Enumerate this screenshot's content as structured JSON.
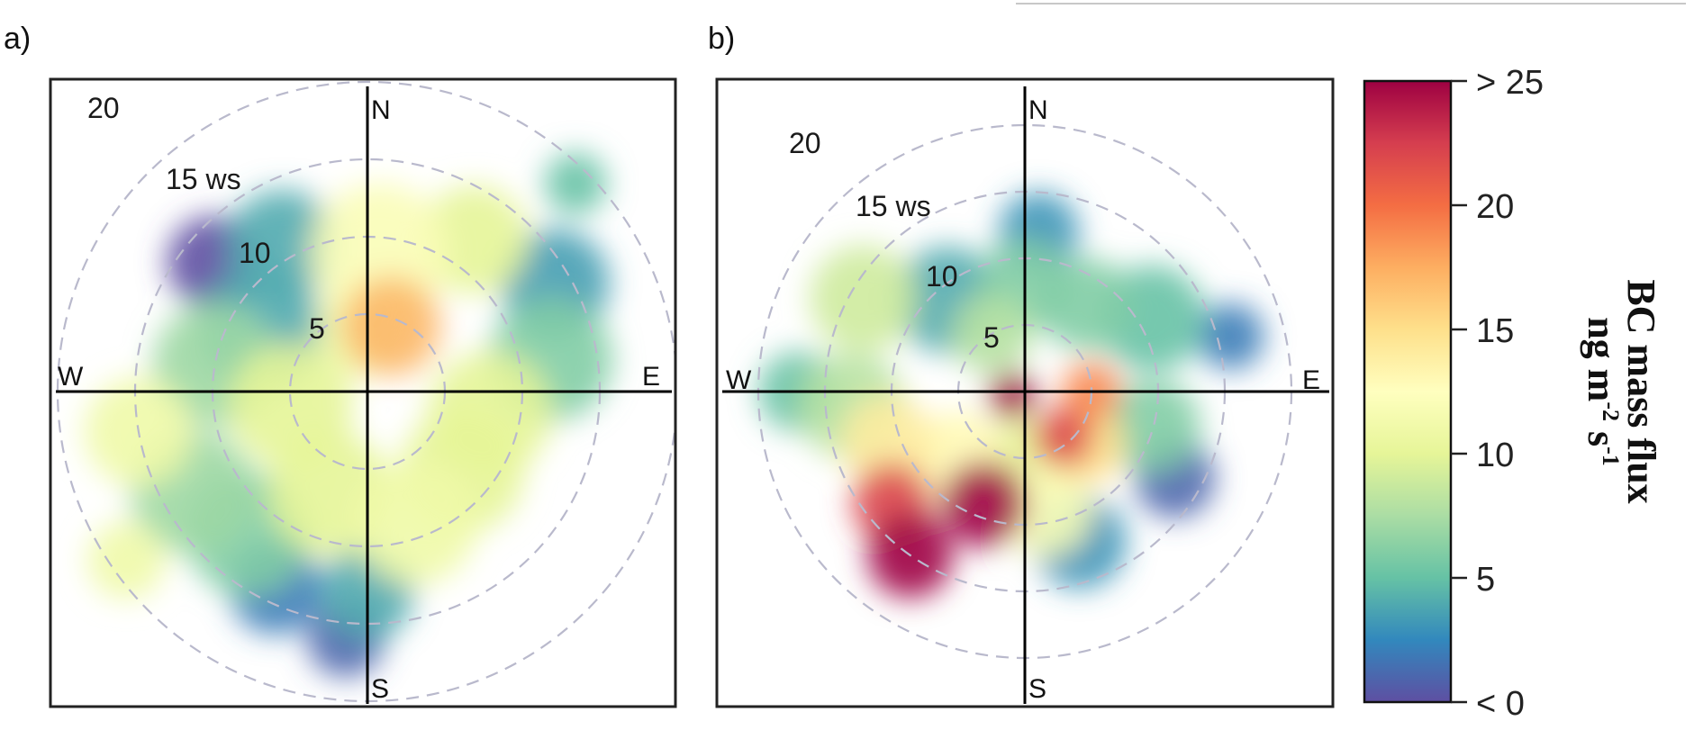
{
  "chart_data": [
    {
      "type": "heatmap",
      "panel": "a)",
      "projection": "polar",
      "radial_label_suffix": "ws",
      "radial_ticks": [
        5,
        10,
        15,
        20
      ],
      "directions": [
        "N",
        "E",
        "S",
        "W"
      ],
      "color_variable": "BC mass flux",
      "blobs": [
        {
          "dir": 20,
          "ws": 4.5,
          "value": 17,
          "spread": 3.2
        },
        {
          "dir": 5,
          "ws": 9,
          "value": 12,
          "spread": 4.5
        },
        {
          "dir": 35,
          "ws": 12,
          "value": 10,
          "spread": 3.5
        },
        {
          "dir": 60,
          "ws": 14,
          "value": 3.5,
          "spread": 3.5
        },
        {
          "dir": 80,
          "ws": 12,
          "value": 6,
          "spread": 4
        },
        {
          "dir": 45,
          "ws": 19,
          "value": 5,
          "spread": 2
        },
        {
          "dir": 100,
          "ws": 8,
          "value": 10,
          "spread": 4
        },
        {
          "dir": 130,
          "ws": 8,
          "value": 10,
          "spread": 4
        },
        {
          "dir": 160,
          "ws": 9,
          "value": 11,
          "spread": 4
        },
        {
          "dir": 180,
          "ws": 13,
          "value": 4,
          "spread": 3
        },
        {
          "dir": 185,
          "ws": 16,
          "value": 1,
          "spread": 2.5
        },
        {
          "dir": 205,
          "ws": 14,
          "value": 2,
          "spread": 3
        },
        {
          "dir": 220,
          "ws": 12,
          "value": 6,
          "spread": 4
        },
        {
          "dir": 240,
          "ws": 13,
          "value": 7,
          "spread": 4
        },
        {
          "dir": 235,
          "ws": 19,
          "value": 11,
          "spread": 2.5
        },
        {
          "dir": 260,
          "ws": 15,
          "value": 11,
          "spread": 3.5
        },
        {
          "dir": 280,
          "ws": 10,
          "value": 7,
          "spread": 4
        },
        {
          "dir": 300,
          "ws": 8,
          "value": 4,
          "spread": 4
        },
        {
          "dir": 310,
          "ws": 13,
          "value": 0,
          "spread": 3
        },
        {
          "dir": 330,
          "ws": 11,
          "value": 4,
          "spread": 3.5
        },
        {
          "dir": 200,
          "ws": 7,
          "value": 10,
          "spread": 4
        },
        {
          "dir": 260,
          "ws": 5,
          "value": 10,
          "spread": 4
        },
        {
          "dir": 355,
          "ws": 4,
          "value": 11,
          "spread": 3
        }
      ]
    },
    {
      "type": "heatmap",
      "panel": "b)",
      "projection": "polar",
      "radial_label_suffix": "ws",
      "radial_ticks": [
        5,
        10,
        15,
        20
      ],
      "directions": [
        "N",
        "E",
        "S",
        "W"
      ],
      "color_variable": "BC mass flux",
      "blobs": [
        {
          "dir": 250,
          "ws": 1,
          "value": 30,
          "spread": 1.8
        },
        {
          "dir": 90,
          "ws": 5,
          "value": 19,
          "spread": 2.2
        },
        {
          "dir": 140,
          "ws": 4.5,
          "value": 22,
          "spread": 2.2
        },
        {
          "dir": 130,
          "ws": 6,
          "value": 15,
          "spread": 3
        },
        {
          "dir": 200,
          "ws": 9,
          "value": 30,
          "spread": 3.2
        },
        {
          "dir": 215,
          "ws": 15,
          "value": 30,
          "spread": 3.2
        },
        {
          "dir": 230,
          "ws": 13,
          "value": 22,
          "spread": 3
        },
        {
          "dir": 250,
          "ws": 11,
          "value": 14,
          "spread": 3.5
        },
        {
          "dir": 225,
          "ws": 7,
          "value": 13,
          "spread": 3.5
        },
        {
          "dir": 170,
          "ws": 9,
          "value": 12,
          "spread": 3.5
        },
        {
          "dir": 265,
          "ws": 13,
          "value": 8,
          "spread": 4
        },
        {
          "dir": 270,
          "ws": 17,
          "value": 5,
          "spread": 3
        },
        {
          "dir": 300,
          "ws": 14,
          "value": 9,
          "spread": 4
        },
        {
          "dir": 320,
          "ws": 9,
          "value": 4,
          "spread": 4
        },
        {
          "dir": 330,
          "ws": 5,
          "value": 8,
          "spread": 3
        },
        {
          "dir": 0,
          "ws": 8,
          "value": 6,
          "spread": 3.5
        },
        {
          "dir": 5,
          "ws": 12,
          "value": 3,
          "spread": 3
        },
        {
          "dir": 35,
          "ws": 8,
          "value": 6,
          "spread": 3.5
        },
        {
          "dir": 60,
          "ws": 11,
          "value": 5,
          "spread": 4
        },
        {
          "dir": 75,
          "ws": 16,
          "value": 2,
          "spread": 2.5
        },
        {
          "dir": 105,
          "ws": 10,
          "value": 6,
          "spread": 3.5
        },
        {
          "dir": 120,
          "ws": 13,
          "value": 1,
          "spread": 3
        },
        {
          "dir": 160,
          "ws": 12,
          "value": 3,
          "spread": 3.5
        },
        {
          "dir": 180,
          "ws": 5,
          "value": 10,
          "spread": 3
        }
      ]
    }
  ],
  "colorbar": {
    "ticks": [
      "< 0",
      "5",
      "10",
      "15",
      "20",
      "> 25"
    ],
    "tick_values": [
      0,
      5,
      10,
      15,
      20,
      25
    ],
    "range": [
      0,
      25
    ],
    "title_line1": "BC mass flux",
    "title_line2_base": "ng m",
    "title_line2_exp1": "-2",
    "title_line2_mid": " s",
    "title_line2_exp2": "-1",
    "colors": [
      "#5e4fa2",
      "#3288bd",
      "#66c2a5",
      "#abdda4",
      "#e6f598",
      "#ffffbf",
      "#fee08b",
      "#fdae61",
      "#f46d43",
      "#d53e4f",
      "#9e0142"
    ]
  },
  "labels": {
    "panel_a": "a)",
    "panel_b": "b)",
    "ring_5": "5",
    "ring_10": "10",
    "ring_15": "15 ws",
    "ring_20": "20",
    "north": "N",
    "east": "E",
    "south": "S",
    "west": "W"
  }
}
